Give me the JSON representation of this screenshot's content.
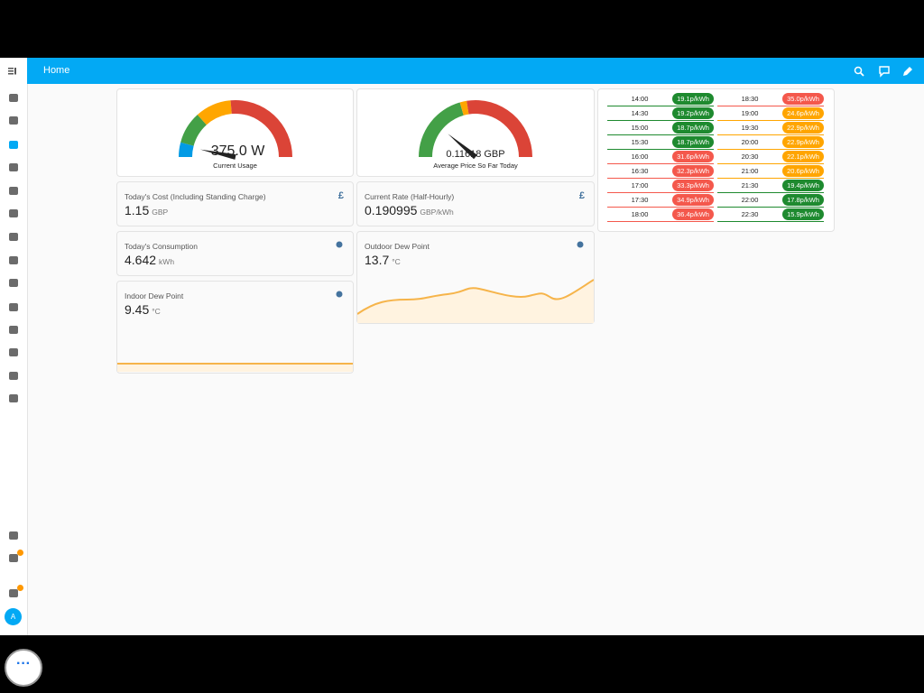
{
  "header": {
    "title": "Home"
  },
  "gauges": [
    {
      "value": "375.0 W",
      "label": "Current Usage"
    },
    {
      "value": "0.11618 GBP",
      "label": "Average Price So Far Today"
    }
  ],
  "entities": [
    {
      "name": "Today's Cost (Including Standing Charge)",
      "state": "1.15",
      "unit": "GBP",
      "icon": "£"
    },
    {
      "name": "Current Rate (Half-Hourly)",
      "state": "0.190995",
      "unit": "GBP/kWh",
      "icon": "£"
    },
    {
      "name": "Today's Consumption",
      "state": "4.642",
      "unit": "kWh"
    },
    {
      "name": "Outdoor Dew Point",
      "state": "13.7",
      "unit": "°C"
    },
    {
      "name": "Indoor Dew Point",
      "state": "9.45",
      "unit": "°C"
    }
  ],
  "rates": [
    {
      "time": "14:00",
      "rate": "19.1p/kWh",
      "color": "#1e8a2f"
    },
    {
      "time": "14:30",
      "rate": "19.2p/kWh",
      "color": "#1e8a2f"
    },
    {
      "time": "15:00",
      "rate": "18.7p/kWh",
      "color": "#1e8a2f"
    },
    {
      "time": "15:30",
      "rate": "18.7p/kWh",
      "color": "#1e8a2f"
    },
    {
      "time": "16:00",
      "rate": "31.6p/kWh",
      "color": "#f4584c"
    },
    {
      "time": "16:30",
      "rate": "32.3p/kWh",
      "color": "#f4584c"
    },
    {
      "time": "17:00",
      "rate": "33.3p/kWh",
      "color": "#f4584c"
    },
    {
      "time": "17:30",
      "rate": "34.9p/kWh",
      "color": "#f4584c"
    },
    {
      "time": "18:00",
      "rate": "36.4p/kWh",
      "color": "#f4584c"
    },
    {
      "time": "18:30",
      "rate": "35.0p/kWh",
      "color": "#f4584c"
    },
    {
      "time": "19:00",
      "rate": "24.6p/kWh",
      "color": "#ffa500"
    },
    {
      "time": "19:30",
      "rate": "22.9p/kWh",
      "color": "#ffa500"
    },
    {
      "time": "20:00",
      "rate": "22.9p/kWh",
      "color": "#ffa500"
    },
    {
      "time": "20:30",
      "rate": "22.1p/kWh",
      "color": "#ffa500"
    },
    {
      "time": "21:00",
      "rate": "20.6p/kWh",
      "color": "#ffa500"
    },
    {
      "time": "21:30",
      "rate": "19.4p/kWh",
      "color": "#1e8a2f"
    },
    {
      "time": "22:00",
      "rate": "17.8p/kWh",
      "color": "#1e8a2f"
    },
    {
      "time": "22:30",
      "rate": "15.9p/kWh",
      "color": "#1e8a2f"
    }
  ],
  "sidebar": {
    "avatar": "A"
  }
}
